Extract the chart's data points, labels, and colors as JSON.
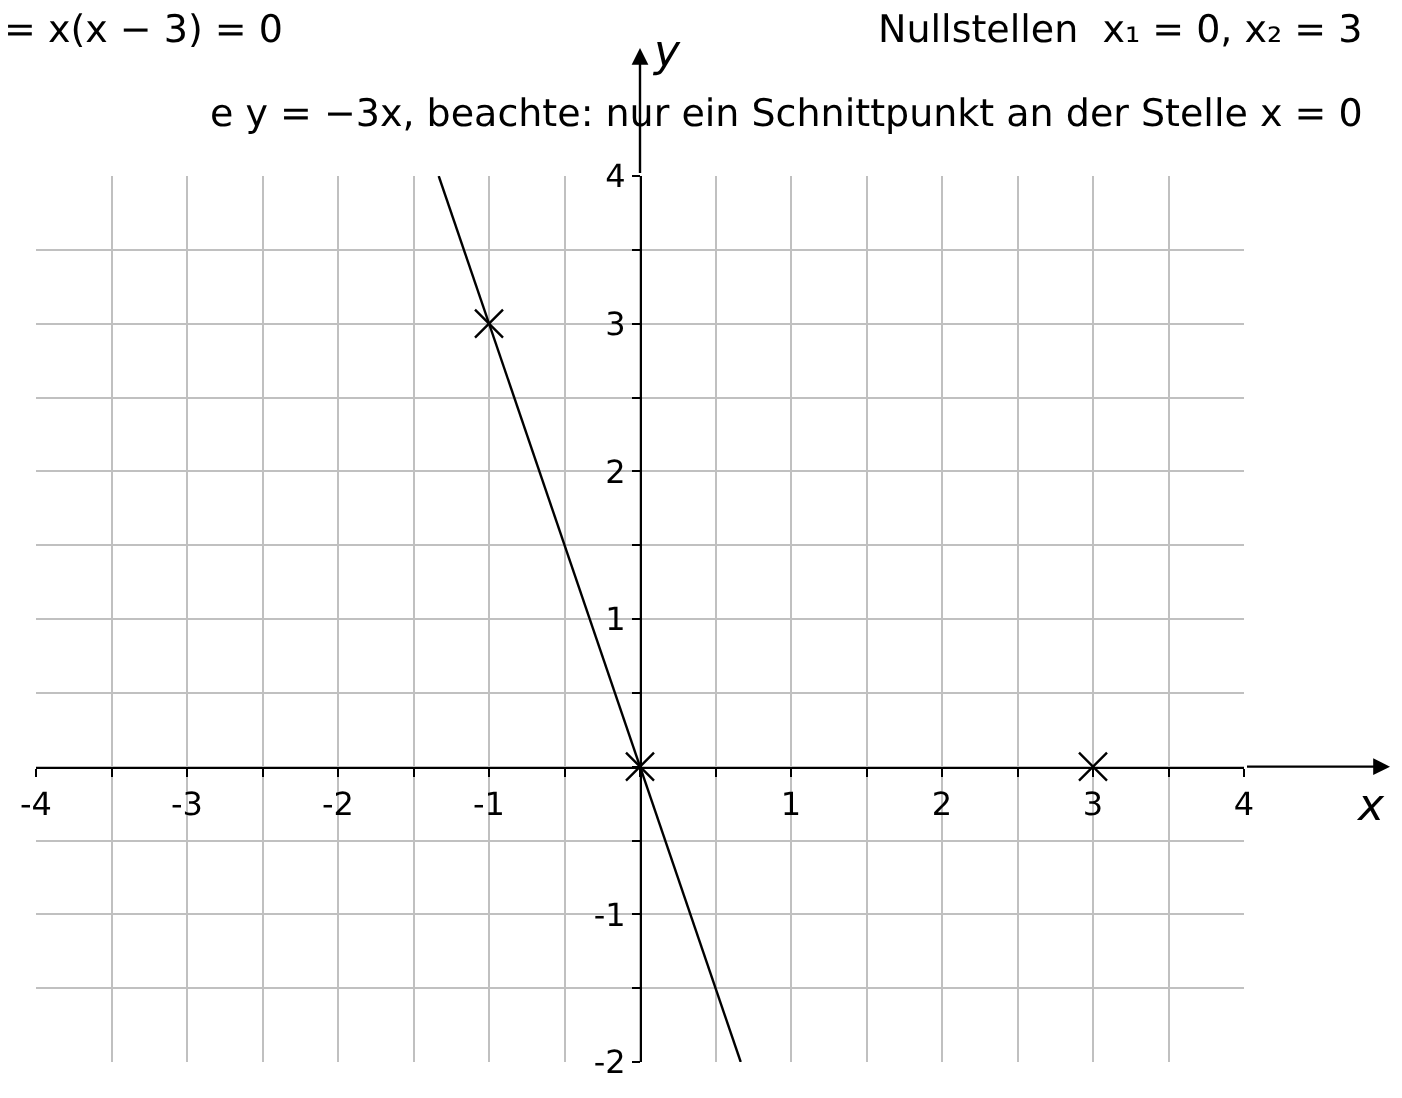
{
  "chart_data": {
    "type": "line",
    "title": "= x(x − 3) = 0",
    "subtitle": "e y = −3x, beachte: nur ein Schnittpunkt an der Stelle x = 0",
    "xlabel": "x",
    "ylabel": "y",
    "annotations": [
      "Nullstellen  x₁ = 0, x₂ = 3"
    ],
    "series": [
      {
        "type": "line",
        "x": [
          -1.333,
          0.667
        ],
        "values": [
          4,
          -2
        ],
        "color": "#000000",
        "marker": "none"
      },
      {
        "type": "scatter",
        "x": [
          -1,
          0,
          3
        ],
        "values": [
          3,
          0,
          0
        ],
        "color": "#000000",
        "marker": "cross"
      }
    ],
    "xlim": [
      -4,
      4
    ],
    "ylim": [
      -2,
      4
    ],
    "xticks": [
      -4,
      {
        "value": -3.5,
        "label": null
      },
      -3,
      {
        "value": -2.5,
        "label": null
      },
      -2,
      {
        "value": -1.5,
        "label": null
      },
      -1,
      {
        "value": -0.5,
        "label": null
      },
      {
        "value": 0,
        "label": null
      },
      {
        "value": 0.5,
        "label": null
      },
      1,
      {
        "value": 1.5,
        "label": null
      },
      2,
      {
        "value": 2.5,
        "label": null
      },
      3,
      {
        "value": 3.5,
        "label": null
      },
      4
    ],
    "yticks": [
      -2,
      {
        "value": -1.5,
        "label": null
      },
      -1,
      {
        "value": -0.5,
        "label": null
      },
      {
        "value": 0,
        "label": null
      },
      {
        "value": 0.5,
        "label": null
      },
      1,
      {
        "value": 1.5,
        "label": null
      },
      2,
      {
        "value": 2.5,
        "label": null
      },
      3,
      {
        "value": 3.5,
        "label": null
      },
      4
    ],
    "grid": true
  }
}
